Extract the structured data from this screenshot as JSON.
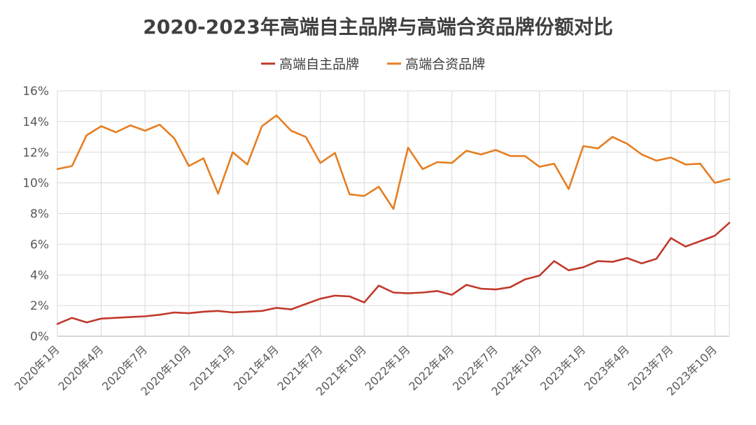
{
  "chart_data": {
    "type": "line",
    "title": "2020-2023年高端自主品牌与高端合资品牌份额对比",
    "xlabel": "",
    "ylabel": "",
    "ylim": [
      0,
      16
    ],
    "y_ticks": [
      "0%",
      "2%",
      "4%",
      "6%",
      "8%",
      "10%",
      "12%",
      "14%",
      "16%"
    ],
    "x_tick_labels": [
      "2020年1月",
      "2020年4月",
      "2020年7月",
      "2020年10月",
      "2021年1月",
      "2021年4月",
      "2021年7月",
      "2021年10月",
      "2022年1月",
      "2022年4月",
      "2022年7月",
      "2022年10月",
      "2023年1月",
      "2023年4月",
      "2023年7月",
      "2023年10月"
    ],
    "grid": true,
    "legend_position": "top",
    "series": [
      {
        "name": "高端自主品牌",
        "color": "#c0392b",
        "values": [
          0.8,
          1.2,
          0.9,
          1.15,
          1.2,
          1.25,
          1.3,
          1.4,
          1.55,
          1.5,
          1.6,
          1.65,
          1.55,
          1.6,
          1.65,
          1.85,
          1.75,
          2.1,
          2.45,
          2.65,
          2.6,
          2.2,
          3.3,
          2.85,
          2.8,
          2.85,
          2.95,
          2.7,
          3.35,
          3.1,
          3.05,
          3.2,
          3.7,
          3.95,
          4.9,
          4.3,
          4.5,
          4.9,
          4.85,
          5.1,
          4.75,
          5.05,
          6.4,
          5.85,
          6.2,
          6.55,
          7.4
        ]
      },
      {
        "name": "高端合资品牌",
        "color": "#e67e22",
        "values": [
          10.9,
          11.1,
          13.1,
          13.7,
          13.3,
          13.75,
          13.4,
          13.8,
          12.9,
          11.1,
          11.6,
          9.3,
          12.0,
          11.2,
          13.7,
          14.4,
          13.4,
          13.0,
          11.3,
          11.95,
          9.25,
          9.15,
          9.75,
          8.3,
          12.3,
          10.9,
          11.35,
          11.3,
          12.1,
          11.85,
          12.15,
          11.75,
          11.75,
          11.05,
          11.25,
          9.6,
          12.4,
          12.25,
          13.0,
          12.55,
          11.85,
          11.45,
          11.65,
          11.2,
          11.25,
          10.0,
          10.25
        ]
      }
    ]
  }
}
